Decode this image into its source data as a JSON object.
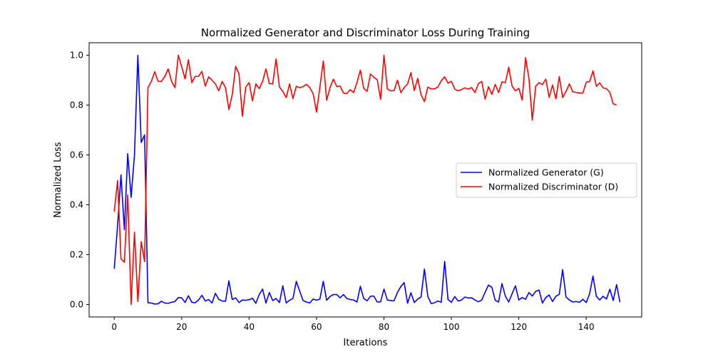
{
  "chart_data": {
    "type": "line",
    "title": "Normalized Generator and Discriminator Loss During Training",
    "xlabel": "Iterations",
    "ylabel": "Normalized Loss",
    "xlim": [
      -7.45,
      156.45
    ],
    "ylim": [
      -0.05,
      1.05
    ],
    "xticks": [
      0,
      20,
      40,
      60,
      80,
      100,
      120,
      140
    ],
    "yticks": [
      "0.0",
      "0.2",
      "0.4",
      "0.6",
      "0.8",
      "1.0"
    ],
    "grid": false,
    "legend_position": "center-right",
    "series": [
      {
        "name": "Normalized Generator (G)",
        "color": "#0000ff",
        "values": [
          0.143,
          0.32,
          0.52,
          0.3,
          0.605,
          0.43,
          0.6,
          1.0,
          0.65,
          0.68,
          0.007,
          0.006,
          0.002,
          0.003,
          0.013,
          0.006,
          0.005,
          0.009,
          0.012,
          0.028,
          0.027,
          0.008,
          0.035,
          0.009,
          0.007,
          0.018,
          0.037,
          0.014,
          0.02,
          0.006,
          0.045,
          0.021,
          0.014,
          0.013,
          0.095,
          0.02,
          0.027,
          0.008,
          0.018,
          0.017,
          0.019,
          0.025,
          0.005,
          0.04,
          0.062,
          0.006,
          0.048,
          0.016,
          0.024,
          0.008,
          0.075,
          0.006,
          0.017,
          0.024,
          0.093,
          0.054,
          0.016,
          0.01,
          0.006,
          0.022,
          0.017,
          0.022,
          0.093,
          0.017,
          0.032,
          0.04,
          0.04,
          0.027,
          0.04,
          0.024,
          0.02,
          0.018,
          0.01,
          0.073,
          0.024,
          0.015,
          0.033,
          0.034,
          0.01,
          0.011,
          0.062,
          0.018,
          0.016,
          0.015,
          0.048,
          0.072,
          0.088,
          0.005,
          0.047,
          0.008,
          0.022,
          0.03,
          0.142,
          0.033,
          0.004,
          0.007,
          0.014,
          0.009,
          0.173,
          0.02,
          0.009,
          0.032,
          0.014,
          0.018,
          0.03,
          0.026,
          0.027,
          0.018,
          0.011,
          0.018,
          0.049,
          0.078,
          0.069,
          0.017,
          0.01,
          0.084,
          0.034,
          0.01,
          0.043,
          0.075,
          0.018,
          0.028,
          0.021,
          0.048,
          0.034,
          0.053,
          0.058,
          0.006,
          0.028,
          0.038,
          0.012,
          0.033,
          0.041,
          0.14,
          0.03,
          0.018,
          0.01,
          0.012,
          0.009,
          0.021,
          0.008,
          0.043,
          0.114,
          0.033,
          0.018,
          0.033,
          0.022,
          0.061,
          0.016,
          0.08,
          0.009
        ]
      },
      {
        "name": "Normalized Discriminator (D)",
        "color": "#ff0000",
        "values": [
          0.373,
          0.497,
          0.183,
          0.17,
          0.44,
          0.0,
          0.29,
          0.012,
          0.252,
          0.172,
          0.87,
          0.895,
          0.934,
          0.895,
          0.895,
          0.915,
          0.945,
          0.895,
          0.87,
          1.0,
          0.954,
          0.905,
          0.982,
          0.89,
          0.915,
          0.915,
          0.935,
          0.876,
          0.913,
          0.9,
          0.885,
          0.857,
          0.895,
          0.87,
          0.782,
          0.842,
          0.955,
          0.926,
          0.755,
          0.872,
          0.89,
          0.817,
          0.885,
          0.866,
          0.895,
          0.945,
          0.886,
          0.885,
          0.985,
          0.872,
          0.855,
          0.83,
          0.885,
          0.826,
          0.875,
          0.87,
          0.874,
          0.883,
          0.87,
          0.845,
          0.772,
          0.873,
          0.977,
          0.82,
          0.87,
          0.904,
          0.874,
          0.876,
          0.848,
          0.846,
          0.862,
          0.85,
          0.891,
          0.94,
          0.867,
          0.855,
          0.925,
          0.911,
          0.902,
          0.823,
          1.0,
          0.865,
          0.857,
          0.858,
          0.9,
          0.85,
          0.87,
          0.885,
          0.93,
          0.858,
          0.907,
          0.842,
          0.814,
          0.872,
          0.865,
          0.865,
          0.873,
          0.898,
          0.913,
          0.888,
          0.895,
          0.864,
          0.857,
          0.862,
          0.869,
          0.864,
          0.87,
          0.85,
          0.886,
          0.895,
          0.824,
          0.874,
          0.843,
          0.883,
          0.85,
          0.893,
          0.89,
          0.952,
          0.876,
          0.857,
          0.867,
          0.82,
          0.99,
          0.907,
          0.74,
          0.876,
          0.89,
          0.882,
          0.904,
          0.831,
          0.881,
          0.825,
          0.914,
          0.83,
          0.855,
          0.885,
          0.853,
          0.851,
          0.848,
          0.848,
          0.892,
          0.894,
          0.937,
          0.875,
          0.889,
          0.869,
          0.866,
          0.851,
          0.805,
          0.8
        ]
      }
    ]
  }
}
